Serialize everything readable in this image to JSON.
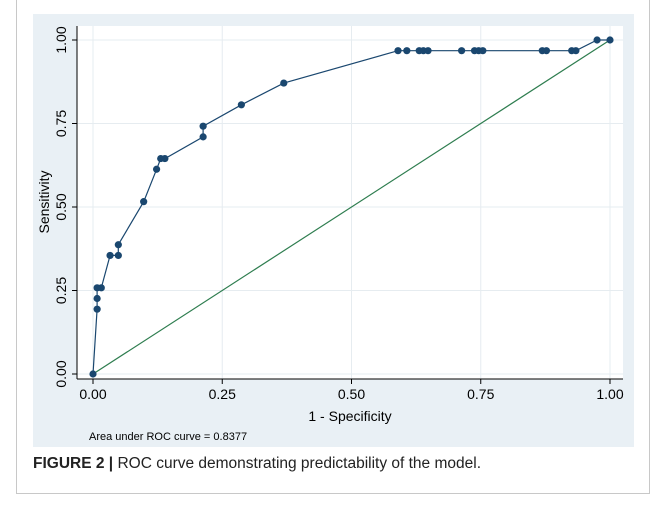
{
  "chart_data": {
    "type": "line",
    "xlabel": "1 - Specificity",
    "ylabel": "Sensitivity",
    "xlim": [
      0,
      1
    ],
    "ylim": [
      0,
      1
    ],
    "xticks": [
      "0.00",
      "0.25",
      "0.50",
      "0.75",
      "1.00"
    ],
    "yticks": [
      "0.00",
      "0.25",
      "0.50",
      "0.75",
      "1.00"
    ],
    "grid": true,
    "note": "Area under ROC curve = 0.8377",
    "series": [
      {
        "role": "roc-curve",
        "color": "#1a476f",
        "markers": true,
        "x": [
          0.0,
          0.008,
          0.008,
          0.008,
          0.016,
          0.033,
          0.049,
          0.049,
          0.098,
          0.123,
          0.131,
          0.139,
          0.213,
          0.213,
          0.287,
          0.369,
          0.59,
          0.607,
          0.631,
          0.639,
          0.648,
          0.713,
          0.738,
          0.746,
          0.754,
          0.869,
          0.877,
          0.926,
          0.934,
          0.975,
          1.0
        ],
        "y": [
          0.0,
          0.194,
          0.226,
          0.258,
          0.258,
          0.355,
          0.355,
          0.387,
          0.516,
          0.613,
          0.645,
          0.645,
          0.71,
          0.742,
          0.806,
          0.871,
          0.968,
          0.968,
          0.968,
          0.968,
          0.968,
          0.968,
          0.968,
          0.968,
          0.968,
          0.968,
          0.968,
          0.968,
          0.968,
          1.0,
          1.0
        ]
      },
      {
        "role": "reference-line",
        "color": "#2e7d4f",
        "markers": false,
        "x": [
          0,
          1
        ],
        "y": [
          0,
          1
        ]
      }
    ]
  },
  "caption": {
    "label": "FIGURE 2 |",
    "text": " ROC curve demonstrating predictability of the model."
  }
}
